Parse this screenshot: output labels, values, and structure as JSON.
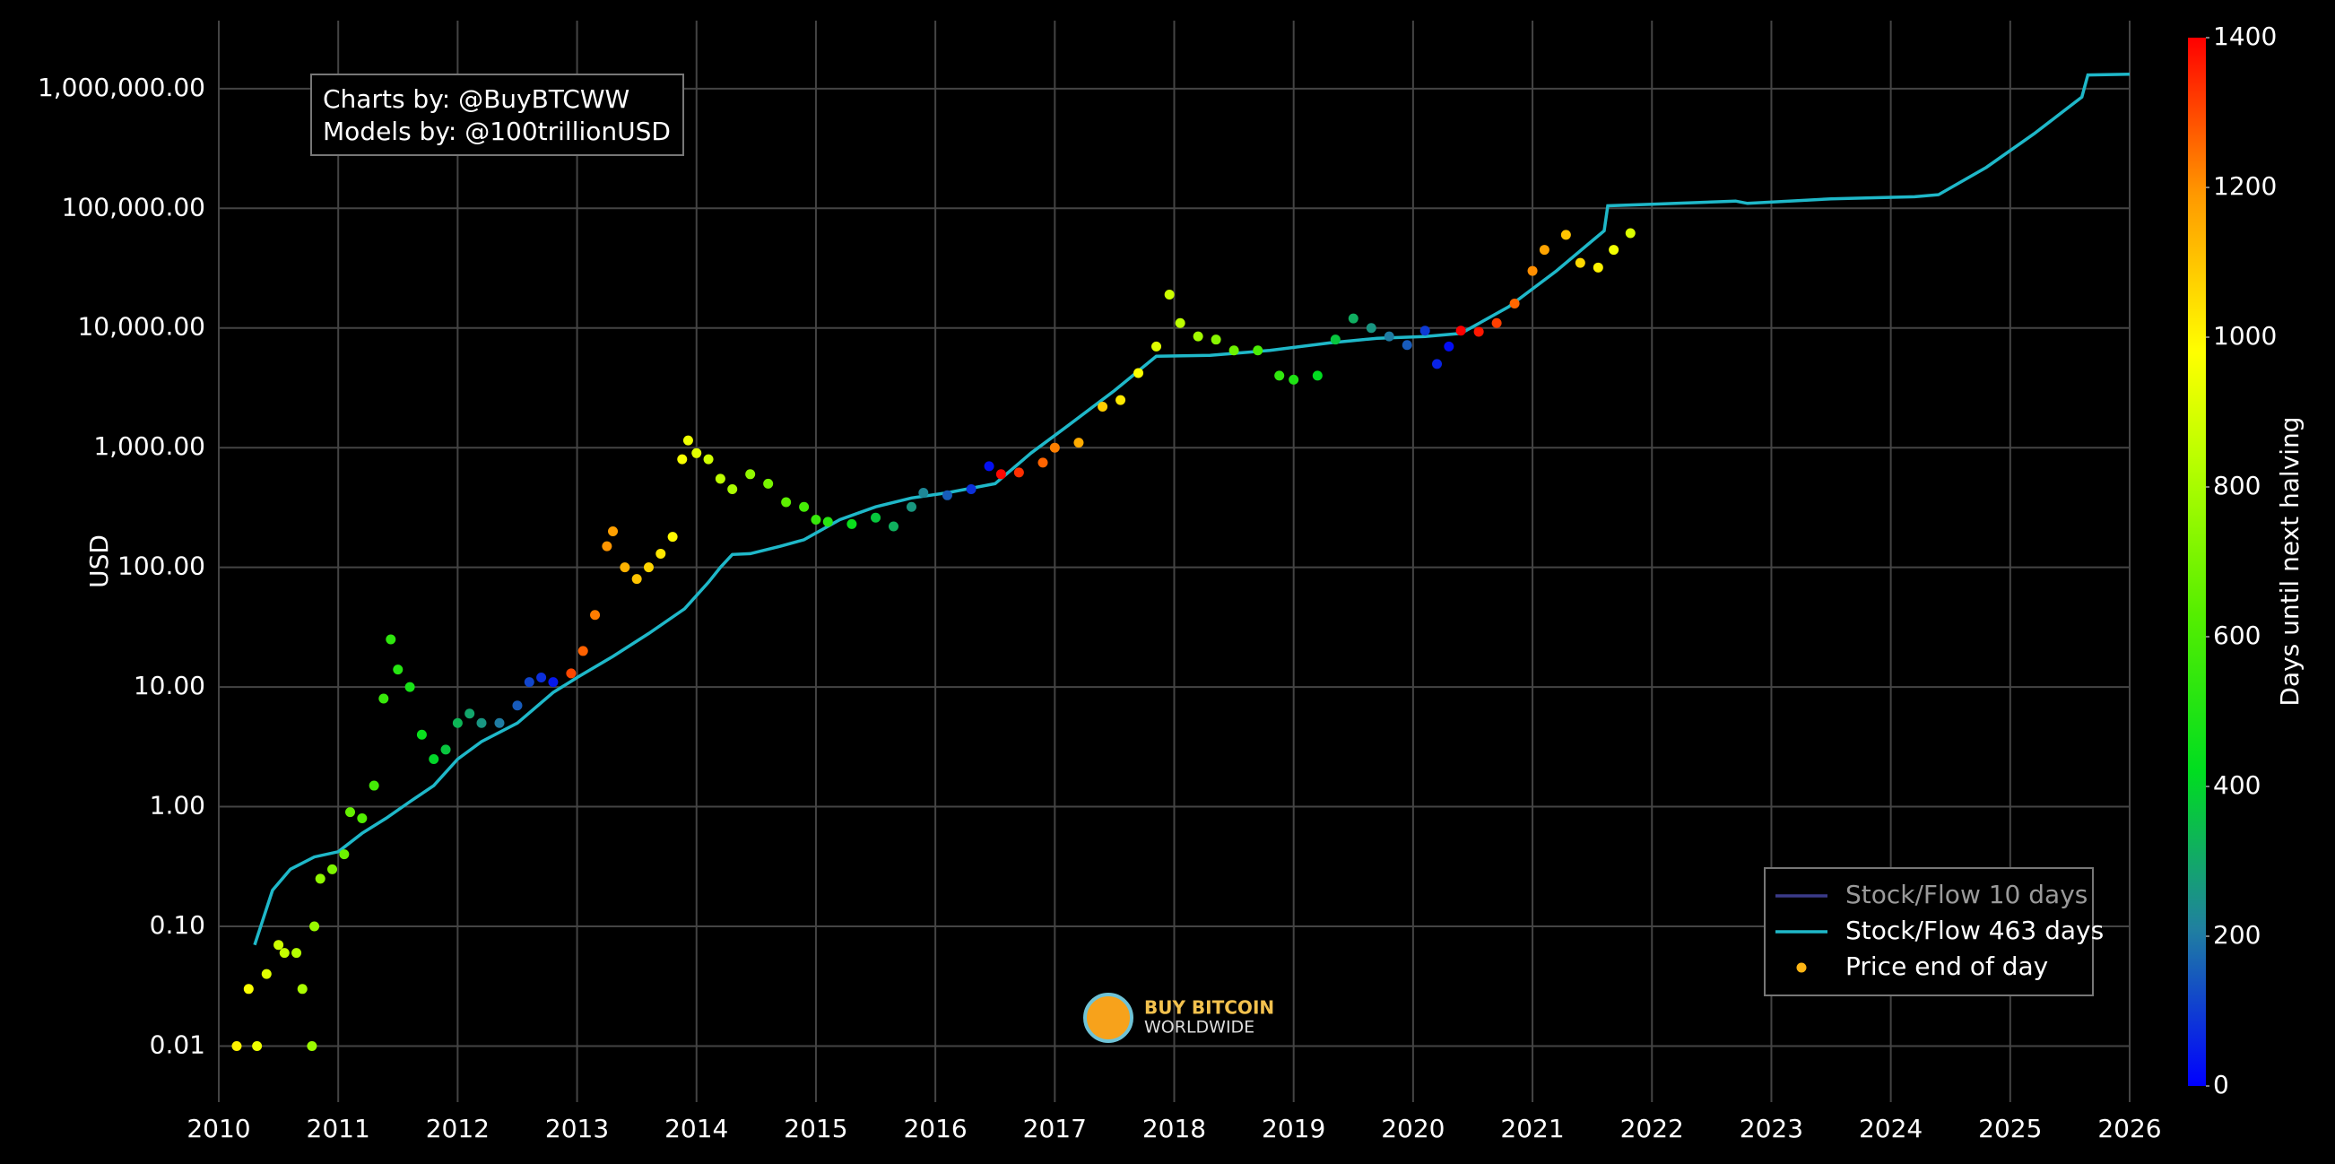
{
  "chart_data": {
    "type": "scatter",
    "log_y": true,
    "grid": true,
    "y_label": "USD",
    "xlim": [
      2010,
      2026
    ],
    "xticks": [
      2010,
      2011,
      2012,
      2013,
      2014,
      2015,
      2016,
      2017,
      2018,
      2019,
      2020,
      2021,
      2022,
      2023,
      2024,
      2025,
      2026
    ],
    "ylim": [
      0.0034,
      3700000
    ],
    "yticks": [
      {
        "value": 0.01,
        "label": "0.01"
      },
      {
        "value": 0.1,
        "label": "0.10"
      },
      {
        "value": 1,
        "label": "1.00"
      },
      {
        "value": 10,
        "label": "10.00"
      },
      {
        "value": 100,
        "label": "100.00"
      },
      {
        "value": 1000,
        "label": "1,000.00"
      },
      {
        "value": 10000,
        "label": "10,000.00"
      },
      {
        "value": 100000,
        "label": "100,000.00"
      },
      {
        "value": 1000000,
        "label": "1,000,000.00"
      }
    ],
    "annotation": [
      "Charts by: @BuyBTCWW",
      "Models by: @100trillionUSD"
    ],
    "logo": [
      "BUY BITCOIN",
      "WORLDWIDE"
    ],
    "legend_position": "bottom-right",
    "colorbar": {
      "title": "Days until next halving",
      "lim": [
        0,
        1400
      ],
      "ticks": [
        0,
        200,
        400,
        600,
        800,
        1000,
        1200,
        1400
      ],
      "colorscale": [
        [
          0,
          "#0000ff"
        ],
        [
          0.15,
          "#2080a0"
        ],
        [
          0.3,
          "#00dd20"
        ],
        [
          0.45,
          "#55ee00"
        ],
        [
          0.6,
          "#bbff00"
        ],
        [
          0.7,
          "#ffff00"
        ],
        [
          0.85,
          "#ff9900"
        ],
        [
          1,
          "#ff0000"
        ]
      ]
    },
    "series": [
      {
        "name": "Stock/Flow 10 days",
        "kind": "line",
        "color": "#3a3a8a",
        "legend_text_color": "#9a9a9a",
        "x": [],
        "values": []
      },
      {
        "name": "Stock/Flow 463 days",
        "kind": "line",
        "color": "#1fb8c9",
        "x": [
          2010.3,
          2010.45,
          2010.6,
          2010.8,
          2011.0,
          2011.2,
          2011.4,
          2011.6,
          2011.8,
          2012.0,
          2012.2,
          2012.5,
          2012.8,
          2013.0,
          2013.3,
          2013.6,
          2013.9,
          2014.1,
          2014.2,
          2014.3,
          2014.45,
          2014.7,
          2014.9,
          2015.2,
          2015.5,
          2015.8,
          2016.1,
          2016.5,
          2016.8,
          2017.1,
          2017.5,
          2017.85,
          2018.3,
          2018.8,
          2019.3,
          2019.7,
          2020.1,
          2020.4,
          2020.8,
          2021.2,
          2021.6,
          2021.63,
          2022.0,
          2022.7,
          2022.8,
          2023.5,
          2024.2,
          2024.4,
          2024.8,
          2025.2,
          2025.6,
          2025.65,
          2026.0
        ],
        "values": [
          0.07,
          0.2,
          0.3,
          0.38,
          0.42,
          0.6,
          0.8,
          1.1,
          1.5,
          2.5,
          3.5,
          5,
          9,
          12,
          18,
          28,
          45,
          75,
          100,
          128,
          130,
          150,
          170,
          250,
          320,
          380,
          420,
          500,
          900,
          1500,
          3000,
          5800,
          5900,
          6500,
          7500,
          8200,
          8500,
          9000,
          15000,
          30000,
          65000,
          105000,
          108000,
          115000,
          110000,
          120000,
          125000,
          130000,
          220000,
          420000,
          850000,
          1300000,
          1320000
        ]
      },
      {
        "name": "Price end of day",
        "kind": "markers",
        "color": "#fdb515",
        "x": [
          2010.15,
          2010.25,
          2010.32,
          2010.4,
          2010.5,
          2010.55,
          2010.65,
          2010.7,
          2010.78,
          2010.8,
          2010.85,
          2010.95,
          2011.05,
          2011.1,
          2011.2,
          2011.3,
          2011.38,
          2011.44,
          2011.5,
          2011.6,
          2011.7,
          2011.8,
          2011.9,
          2012.0,
          2012.1,
          2012.2,
          2012.35,
          2012.5,
          2012.6,
          2012.7,
          2012.8,
          2012.95,
          2013.05,
          2013.15,
          2013.25,
          2013.3,
          2013.4,
          2013.5,
          2013.6,
          2013.7,
          2013.8,
          2013.88,
          2013.93,
          2014.0,
          2014.1,
          2014.2,
          2014.3,
          2014.45,
          2014.6,
          2014.75,
          2014.9,
          2015.0,
          2015.1,
          2015.3,
          2015.5,
          2015.65,
          2015.8,
          2015.9,
          2016.1,
          2016.3,
          2016.45,
          2016.55,
          2016.7,
          2016.9,
          2017.0,
          2017.2,
          2017.4,
          2017.55,
          2017.7,
          2017.85,
          2017.96,
          2018.05,
          2018.2,
          2018.35,
          2018.5,
          2018.7,
          2018.88,
          2019.0,
          2019.2,
          2019.35,
          2019.5,
          2019.65,
          2019.8,
          2019.95,
          2020.1,
          2020.2,
          2020.3,
          2020.4,
          2020.55,
          2020.7,
          2020.85,
          2021.0,
          2021.1,
          2021.28,
          2021.4,
          2021.55,
          2021.68,
          2021.82
        ],
        "values": [
          0.01,
          0.03,
          0.01,
          0.04,
          0.07,
          0.06,
          0.06,
          0.03,
          0.01,
          0.1,
          0.25,
          0.3,
          0.4,
          0.9,
          0.8,
          1.5,
          8,
          25,
          14,
          10,
          4,
          2.5,
          3,
          5,
          6,
          5,
          5,
          7,
          11,
          12,
          11,
          13,
          20,
          40,
          150,
          200,
          100,
          80,
          100,
          130,
          180,
          800,
          1150,
          900,
          800,
          550,
          450,
          600,
          500,
          350,
          320,
          250,
          240,
          230,
          260,
          220,
          320,
          420,
          400,
          450,
          700,
          600,
          620,
          750,
          1000,
          1100,
          2200,
          2500,
          4200,
          7000,
          19000,
          11000,
          8500,
          8000,
          6500,
          6500,
          4000,
          3700,
          4000,
          8000,
          12000,
          10000,
          8500,
          7200,
          9500,
          5000,
          7000,
          9500,
          9300,
          11000,
          16000,
          30000,
          45000,
          60000,
          35000,
          32000,
          45000,
          62000
        ],
        "color_values": [
          1007,
          971,
          945,
          916,
          880,
          861,
          825,
          807,
          777,
          770,
          752,
          715,
          679,
          661,
          624,
          588,
          558,
          537,
          515,
          478,
          442,
          405,
          369,
          332,
          296,
          259,
          204,
          150,
          113,
          77,
          40,
          1303,
          1267,
          1230,
          1194,
          1175,
          1139,
          1102,
          1066,
          1029,
          993,
          964,
          945,
          920,
          883,
          847,
          810,
          756,
          701,
          646,
          591,
          555,
          518,
          445,
          372,
          318,
          263,
          226,
          153,
          80,
          26,
          1391,
          1336,
          1263,
          1226,
          1153,
          1080,
          1026,
          971,
          916,
          876,
          843,
          788,
          734,
          679,
          606,
          540,
          496,
          423,
          369,
          314,
          259,
          204,
          150,
          95,
          58,
          22,
          1424,
          1369,
          1314,
          1259,
          1205,
          1168,
          1102,
          1059,
          1004,
          956,
          905
        ]
      }
    ]
  }
}
